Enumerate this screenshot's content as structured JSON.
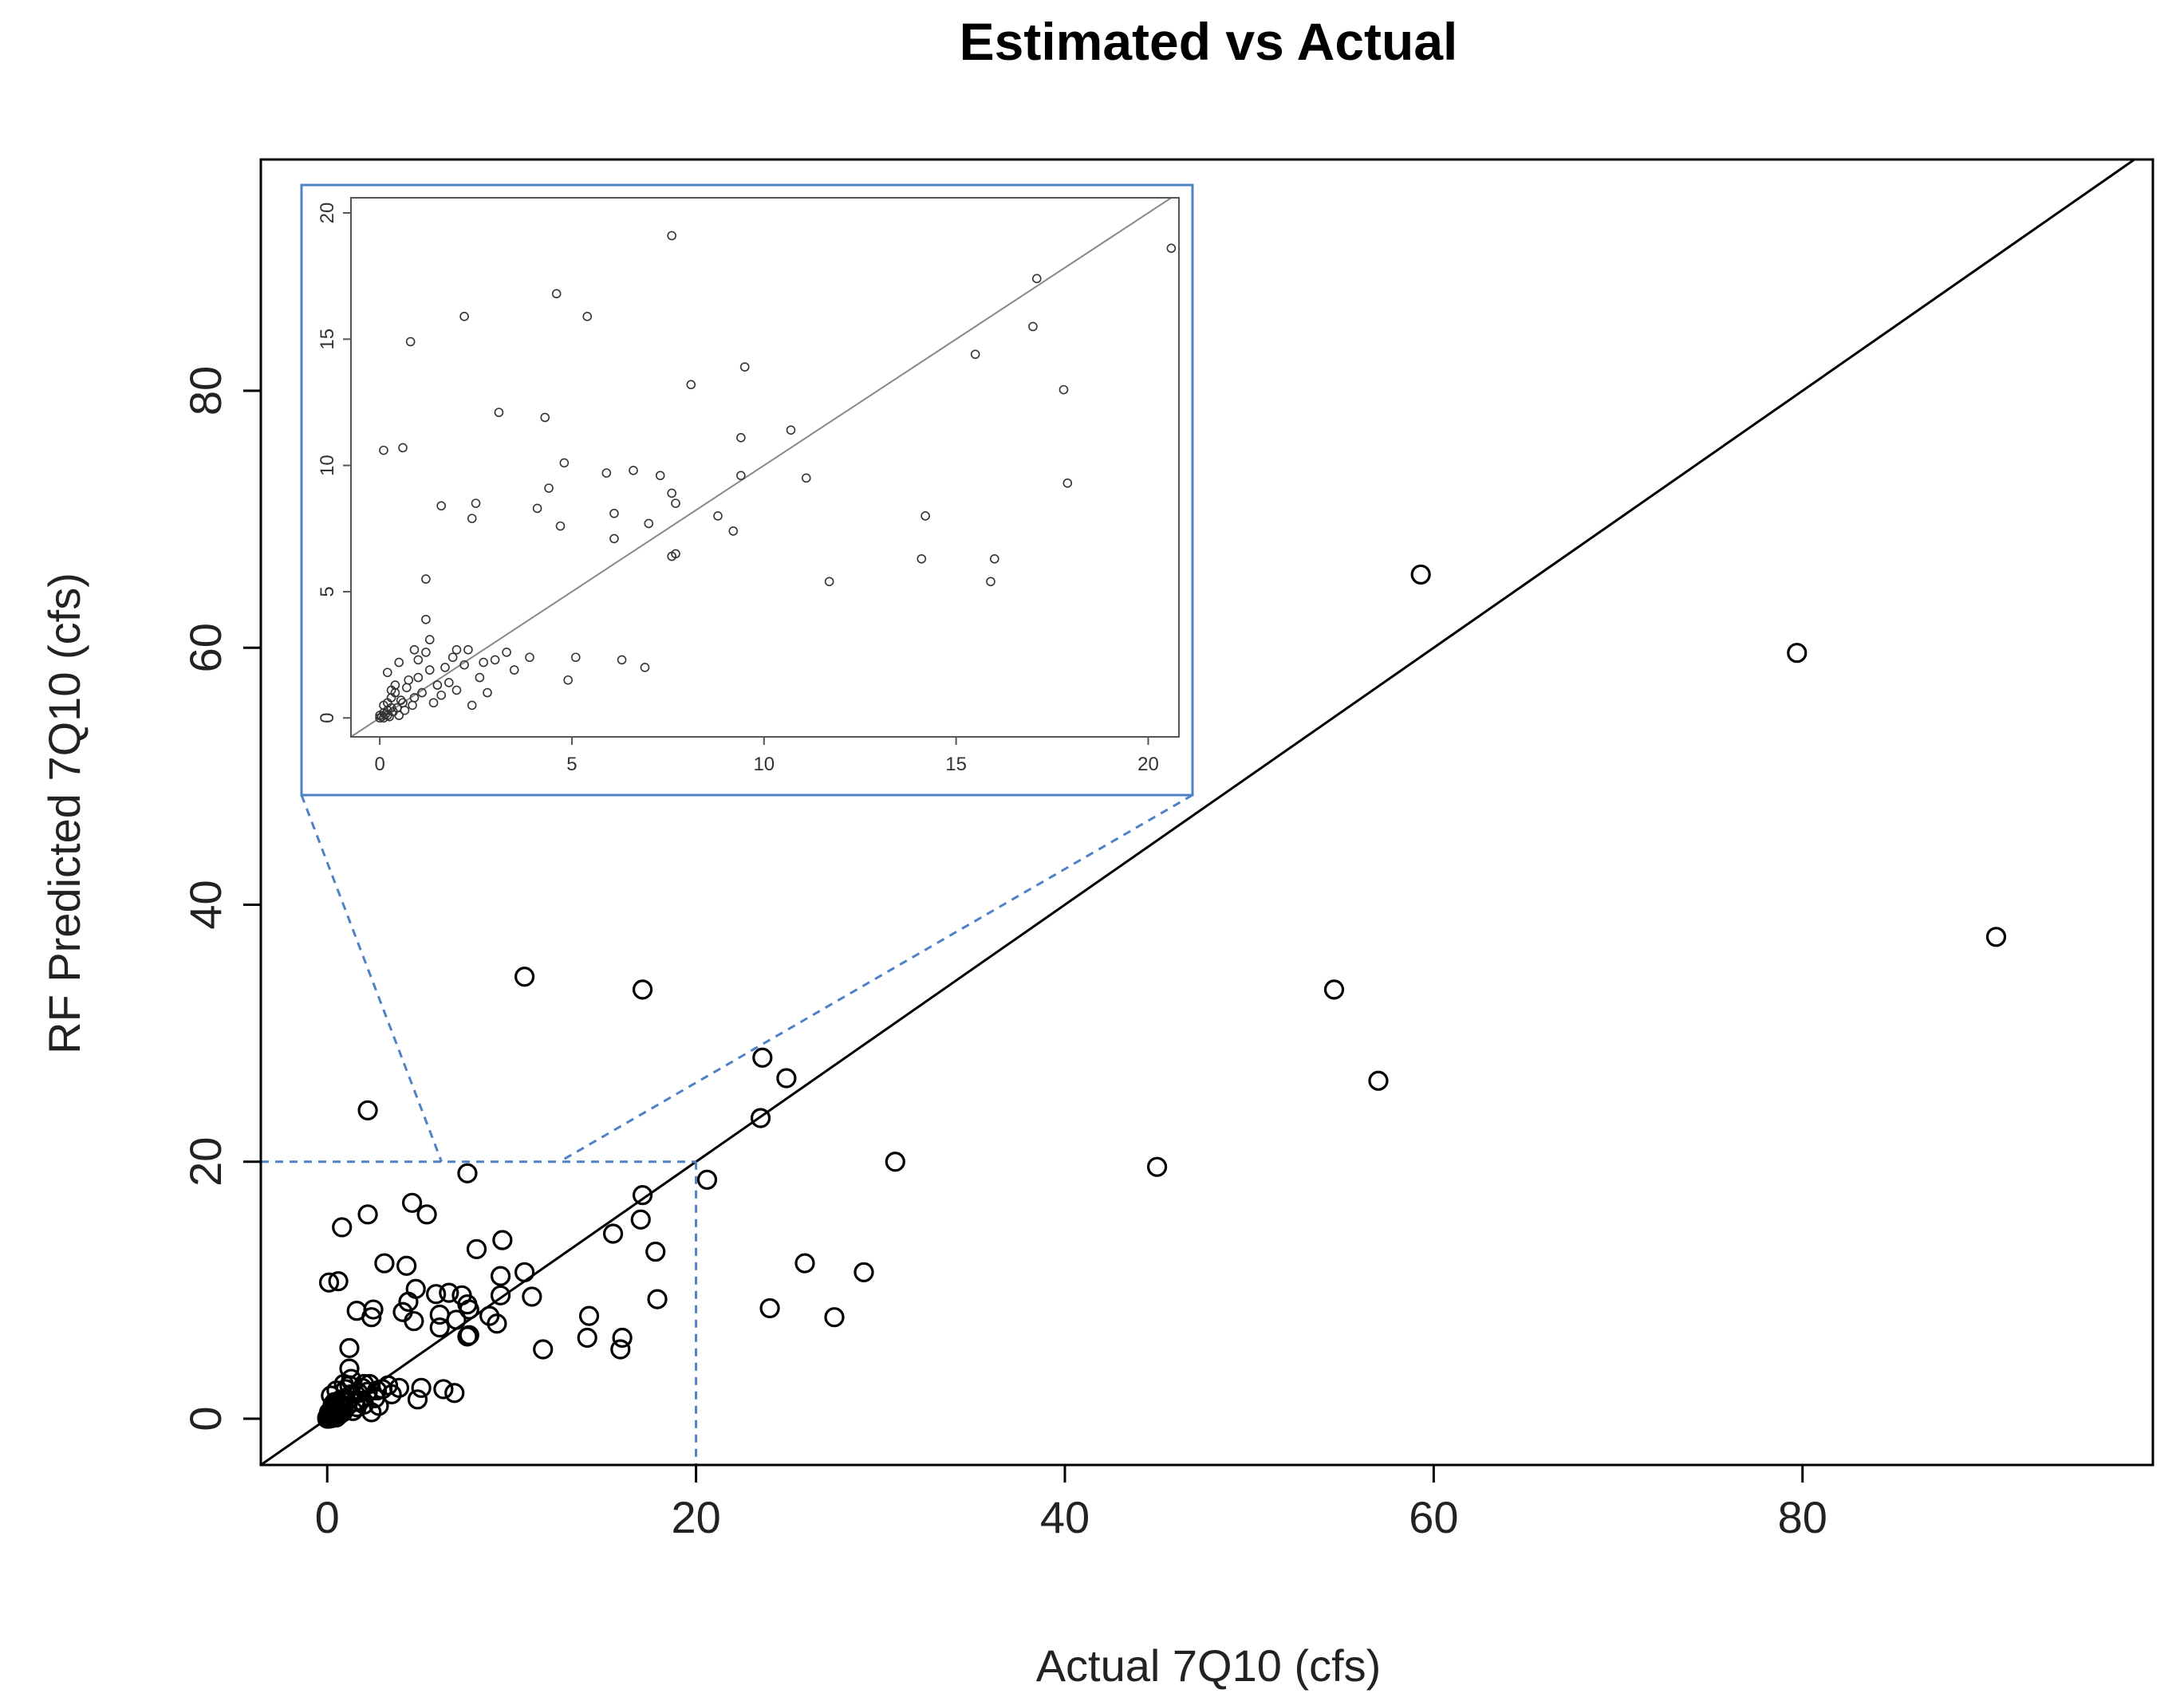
{
  "chart_data": {
    "type": "scatter",
    "title": "Estimated vs Actual",
    "xlabel": "Actual 7Q10 (cfs)",
    "ylabel": "RF Predicted 7Q10 (cfs)",
    "xlim": [
      -3.6,
      99
    ],
    "ylim": [
      -3.6,
      98
    ],
    "xticks": [
      0,
      20,
      40,
      60,
      80
    ],
    "yticks": [
      0,
      20,
      40,
      60,
      80
    ],
    "reference_line": "y = x",
    "zoom_box": {
      "x_max": 20,
      "y_max": 20
    },
    "points": [
      [
        90.5,
        37.5
      ],
      [
        79.7,
        59.6
      ],
      [
        59.3,
        65.7
      ],
      [
        57.0,
        26.3
      ],
      [
        54.6,
        33.4
      ],
      [
        45.0,
        19.6
      ],
      [
        30.8,
        20.0
      ],
      [
        29.1,
        11.4
      ],
      [
        27.5,
        7.9
      ],
      [
        25.9,
        12.1
      ],
      [
        24.9,
        26.5
      ],
      [
        24.0,
        8.6
      ],
      [
        23.6,
        28.1
      ],
      [
        23.5,
        23.4
      ],
      [
        20.6,
        18.6
      ],
      [
        17.8,
        13.0
      ],
      [
        17.9,
        9.3
      ],
      [
        17.1,
        17.4
      ],
      [
        17.0,
        15.5
      ],
      [
        17.1,
        33.4
      ],
      [
        15.9,
        5.4
      ],
      [
        16.0,
        6.3
      ],
      [
        14.2,
        8.0
      ],
      [
        14.1,
        6.3
      ],
      [
        15.5,
        14.4
      ],
      [
        11.7,
        5.4
      ],
      [
        11.1,
        9.5
      ],
      [
        10.7,
        11.4
      ],
      [
        10.7,
        34.4
      ],
      [
        9.5,
        13.9
      ],
      [
        9.4,
        11.1
      ],
      [
        9.4,
        9.6
      ],
      [
        9.2,
        7.4
      ],
      [
        8.8,
        8.0
      ],
      [
        8.1,
        13.2
      ],
      [
        7.7,
        8.5
      ],
      [
        7.6,
        8.9
      ],
      [
        7.6,
        19.1
      ],
      [
        7.6,
        6.4
      ],
      [
        7.7,
        6.5
      ],
      [
        7.3,
        9.6
      ],
      [
        7.0,
        7.7
      ],
      [
        6.9,
        2.0
      ],
      [
        6.3,
        2.3
      ],
      [
        6.6,
        9.8
      ],
      [
        6.1,
        7.1
      ],
      [
        6.1,
        8.1
      ],
      [
        5.9,
        9.7
      ],
      [
        5.4,
        15.9
      ],
      [
        4.6,
        16.8
      ],
      [
        4.7,
        7.6
      ],
      [
        4.8,
        10.1
      ],
      [
        5.1,
        2.4
      ],
      [
        4.9,
        1.5
      ],
      [
        4.4,
        9.1
      ],
      [
        4.3,
        11.9
      ],
      [
        4.1,
        8.3
      ],
      [
        3.9,
        2.4
      ],
      [
        3.5,
        1.9
      ],
      [
        3.1,
        12.1
      ],
      [
        3.0,
        2.3
      ],
      [
        2.5,
        8.5
      ],
      [
        2.4,
        7.9
      ],
      [
        2.4,
        0.5
      ],
      [
        2.2,
        2.1
      ],
      [
        2.3,
        2.7
      ],
      [
        2.2,
        24.0
      ],
      [
        2.2,
        15.9
      ],
      [
        2.0,
        2.7
      ],
      [
        1.8,
        1.4
      ],
      [
        1.6,
        0.9
      ],
      [
        1.6,
        8.4
      ],
      [
        1.3,
        1.9
      ],
      [
        1.2,
        2.6
      ],
      [
        1.2,
        3.9
      ],
      [
        1.2,
        5.5
      ],
      [
        1.0,
        2.3
      ],
      [
        1.0,
        1.6
      ],
      [
        0.9,
        0.8
      ],
      [
        0.8,
        14.9
      ],
      [
        0.7,
        1.2
      ],
      [
        0.6,
        10.7
      ],
      [
        0.5,
        2.2
      ],
      [
        0.6,
        0.6
      ],
      [
        0.4,
        1.0
      ],
      [
        0.3,
        0.4
      ],
      [
        0.2,
        1.8
      ],
      [
        0.1,
        10.6
      ],
      [
        0.1,
        0.2
      ],
      [
        0.0,
        0.1
      ],
      [
        0.2,
        0.3
      ],
      [
        0.1,
        0.5
      ],
      [
        0.3,
        0.8
      ],
      [
        0.4,
        1.3
      ],
      [
        0.5,
        0.1
      ],
      [
        0.2,
        0.1
      ],
      [
        0.0,
        0.0
      ],
      [
        0.1,
        0.0
      ],
      [
        0.05,
        0.05
      ],
      [
        0.15,
        0.15
      ],
      [
        0.25,
        0.05
      ],
      [
        0.35,
        0.25
      ],
      [
        0.45,
        0.4
      ],
      [
        0.2,
        0.6
      ],
      [
        0.3,
        1.1
      ],
      [
        0.55,
        0.7
      ],
      [
        0.65,
        0.3
      ],
      [
        0.75,
        1.5
      ],
      [
        0.85,
        0.5
      ],
      [
        1.1,
        1.0
      ],
      [
        1.4,
        0.6
      ],
      [
        1.5,
        1.3
      ],
      [
        1.7,
        2.0
      ],
      [
        2.0,
        1.1
      ],
      [
        2.6,
        1.6
      ],
      [
        2.8,
        1.0
      ],
      [
        3.3,
        2.6
      ],
      [
        0.9,
        2.7
      ],
      [
        1.3,
        3.1
      ],
      [
        1.9,
        2.4
      ],
      [
        2.7,
        2.2
      ]
    ]
  }
}
